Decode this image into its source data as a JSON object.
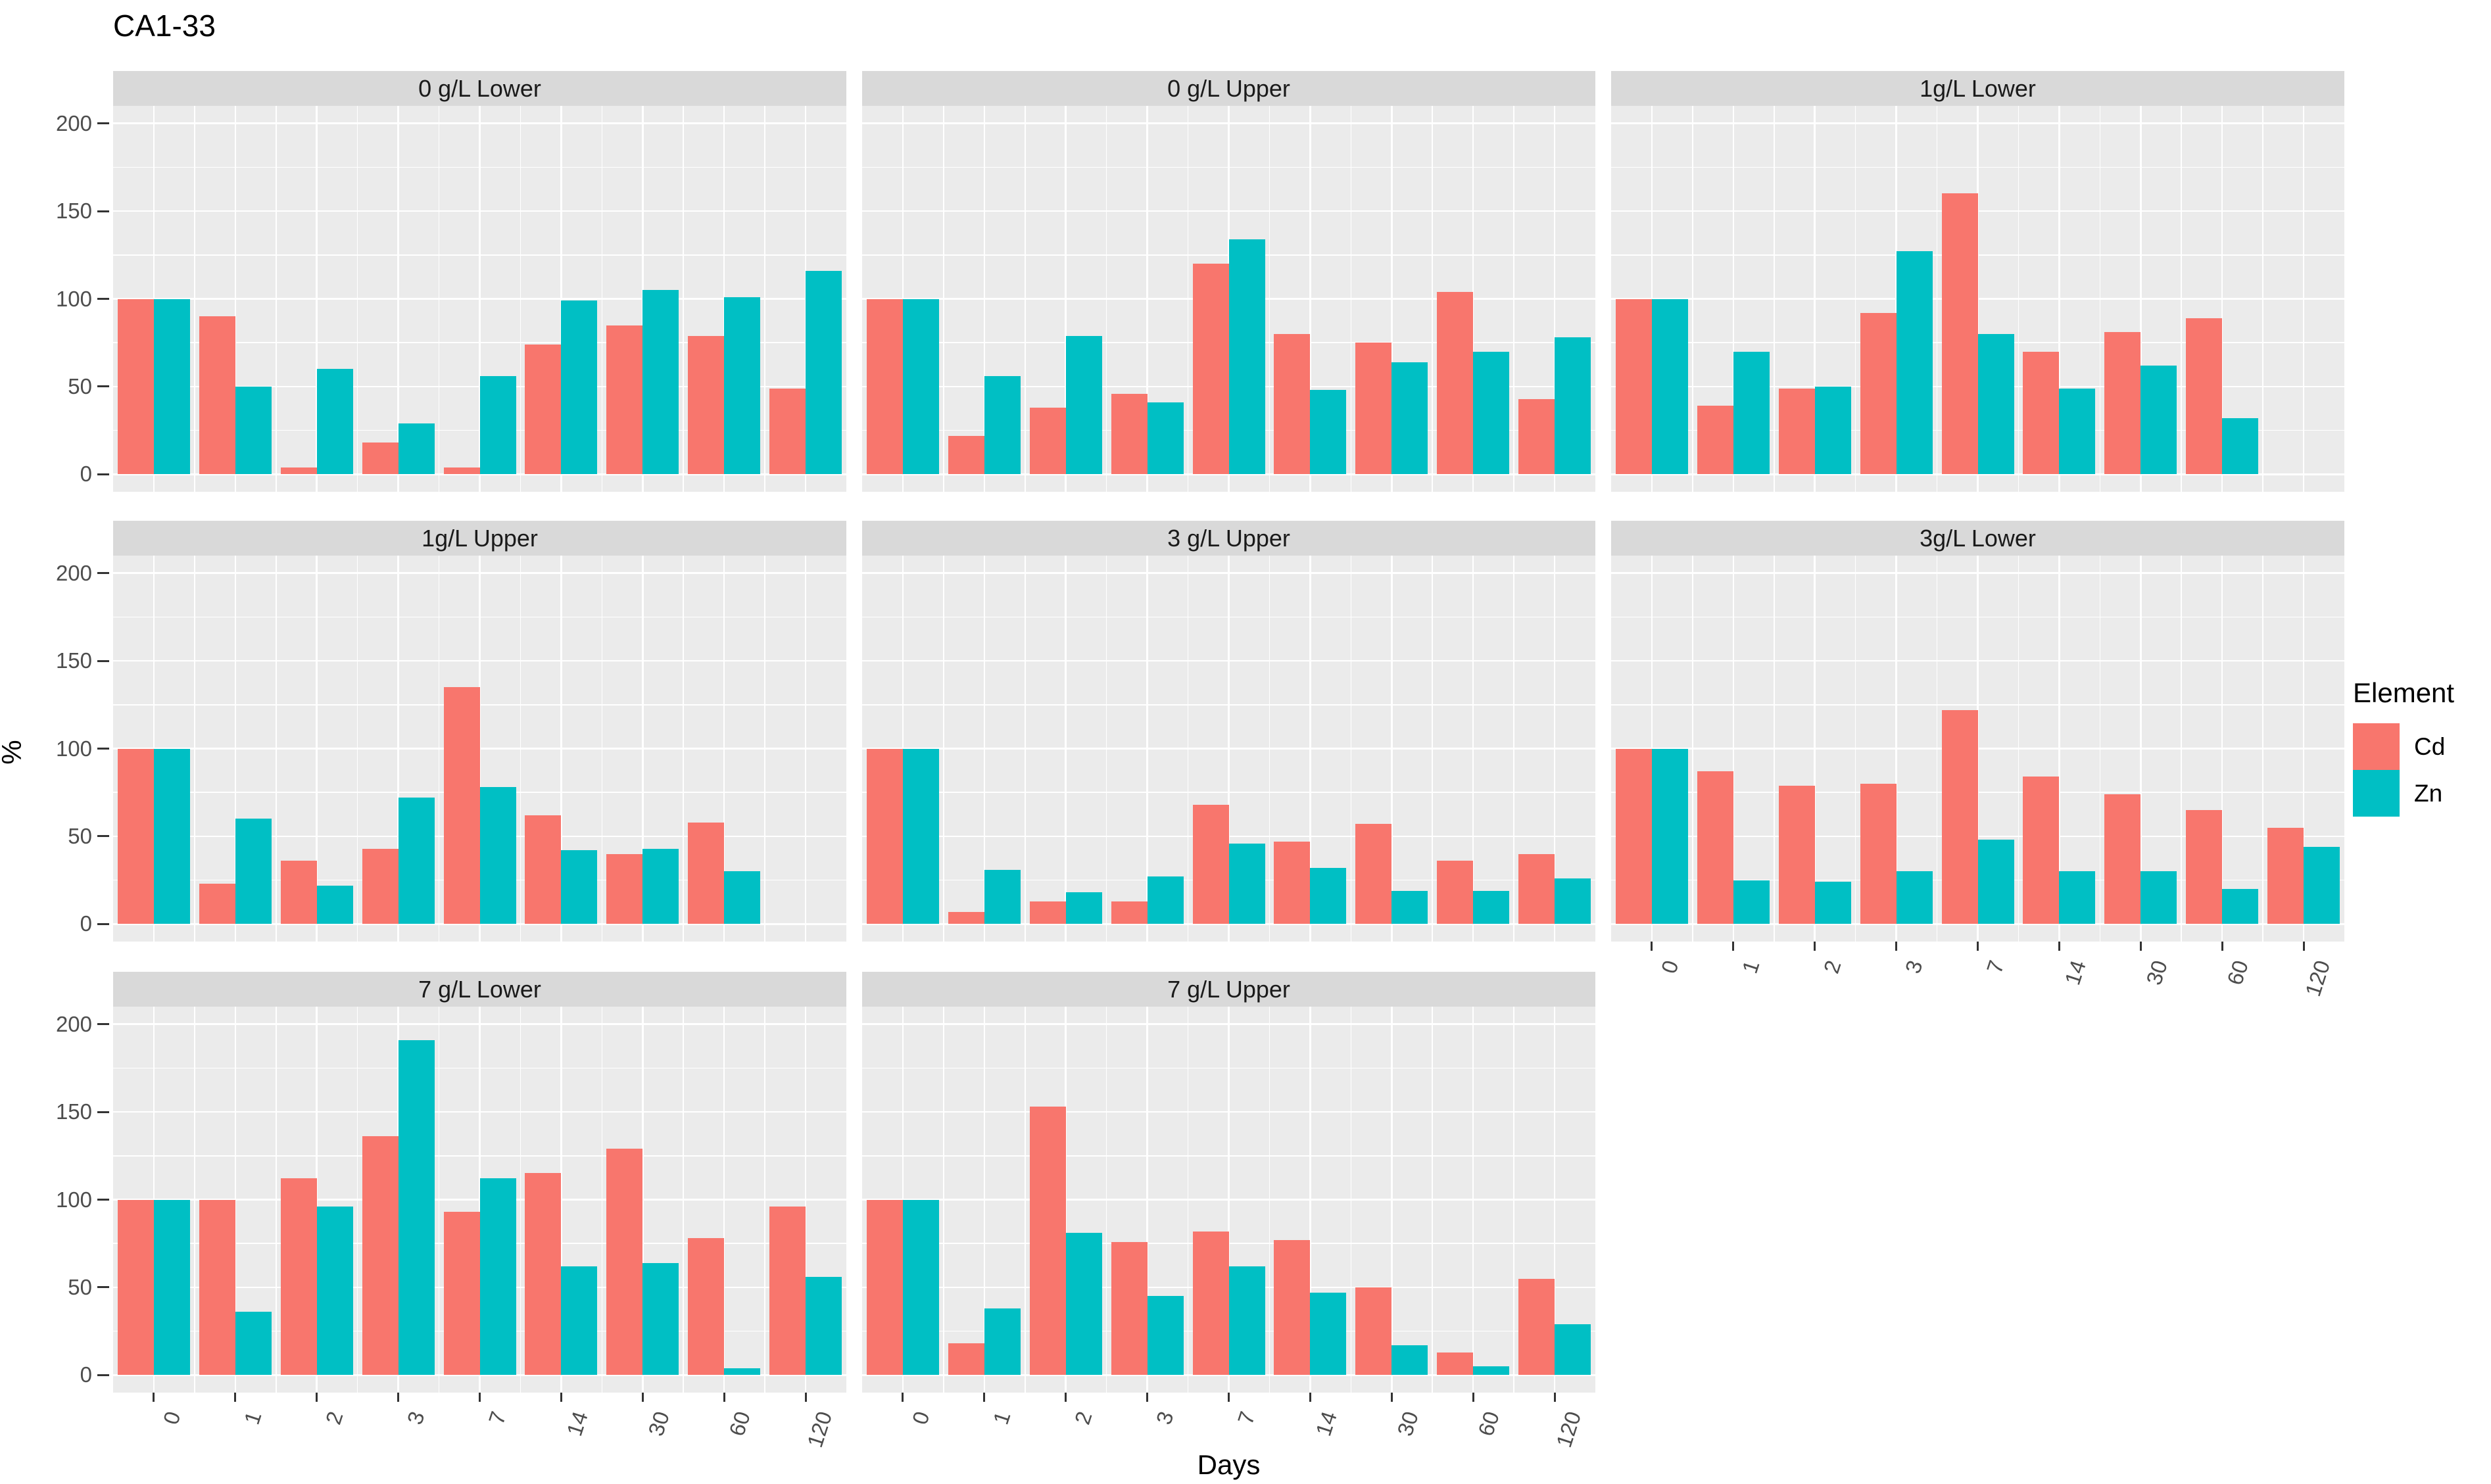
{
  "page": {
    "title": "CA1-33"
  },
  "colors": {
    "cd": "#F8766D",
    "zn": "#00BFC4",
    "panel_bg": "#EBEBEB",
    "strip_bg": "#D9D9D9",
    "grid": "#FFFFFF",
    "axis_text": "#4D4D4D",
    "tick_mark": "#333333"
  },
  "chart_data": {
    "type": "bar",
    "title": "CA1-33",
    "xlabel": "Days",
    "ylabel": "%",
    "categories": [
      "0",
      "1",
      "2",
      "3",
      "7",
      "14",
      "30",
      "60",
      "120"
    ],
    "y_ticks": [
      0,
      50,
      100,
      150,
      200
    ],
    "ylim": [
      -10,
      210
    ],
    "grid": "major+minor white on grey panel",
    "legend_position": "right",
    "legend": {
      "title": "Element",
      "entries": [
        {
          "name": "Cd",
          "color": "#F8766D"
        },
        {
          "name": "Zn",
          "color": "#00BFC4"
        }
      ]
    },
    "facets": [
      {
        "label": "0 g/L Lower",
        "row": 0,
        "col": 0,
        "x_axis": false,
        "series": [
          {
            "name": "Cd",
            "values": [
              100,
              90,
              4,
              18,
              4,
              74,
              85,
              79,
              49
            ]
          },
          {
            "name": "Zn",
            "values": [
              100,
              50,
              60,
              29,
              56,
              99,
              105,
              101,
              116
            ]
          }
        ]
      },
      {
        "label": "0 g/L Upper",
        "row": 0,
        "col": 1,
        "x_axis": false,
        "series": [
          {
            "name": "Cd",
            "values": [
              100,
              22,
              38,
              46,
              120,
              80,
              75,
              104,
              43
            ]
          },
          {
            "name": "Zn",
            "values": [
              100,
              56,
              79,
              41,
              134,
              48,
              64,
              70,
              78
            ]
          }
        ]
      },
      {
        "label": "1g/L Lower",
        "row": 0,
        "col": 2,
        "x_axis": false,
        "series": [
          {
            "name": "Cd",
            "values": [
              100,
              39,
              49,
              92,
              160,
              70,
              81,
              89,
              null
            ]
          },
          {
            "name": "Zn",
            "values": [
              100,
              70,
              50,
              127,
              80,
              49,
              62,
              32,
              null
            ]
          }
        ]
      },
      {
        "label": "1g/L Upper",
        "row": 1,
        "col": 0,
        "x_axis": false,
        "series": [
          {
            "name": "Cd",
            "values": [
              100,
              23,
              36,
              43,
              135,
              62,
              40,
              58,
              null
            ]
          },
          {
            "name": "Zn",
            "values": [
              100,
              60,
              22,
              72,
              78,
              42,
              43,
              30,
              null
            ]
          }
        ]
      },
      {
        "label": "3 g/L Upper",
        "row": 1,
        "col": 1,
        "x_axis": false,
        "series": [
          {
            "name": "Cd",
            "values": [
              100,
              7,
              13,
              13,
              68,
              47,
              57,
              36,
              40
            ]
          },
          {
            "name": "Zn",
            "values": [
              100,
              31,
              18,
              27,
              46,
              32,
              19,
              19,
              26
            ]
          }
        ]
      },
      {
        "label": "3g/L Lower",
        "row": 1,
        "col": 2,
        "x_axis": true,
        "series": [
          {
            "name": "Cd",
            "values": [
              100,
              87,
              79,
              80,
              122,
              84,
              74,
              65,
              55
            ]
          },
          {
            "name": "Zn",
            "values": [
              100,
              25,
              24,
              30,
              48,
              30,
              30,
              20,
              44
            ]
          }
        ]
      },
      {
        "label": "7 g/L Lower",
        "row": 2,
        "col": 0,
        "x_axis": true,
        "series": [
          {
            "name": "Cd",
            "values": [
              100,
              100,
              112,
              136,
              93,
              115,
              129,
              78,
              96
            ]
          },
          {
            "name": "Zn",
            "values": [
              100,
              36,
              96,
              191,
              112,
              62,
              64,
              4,
              56
            ]
          }
        ]
      },
      {
        "label": "7 g/L Upper",
        "row": 2,
        "col": 1,
        "x_axis": true,
        "series": [
          {
            "name": "Cd",
            "values": [
              100,
              18,
              153,
              76,
              82,
              77,
              50,
              13,
              55
            ]
          },
          {
            "name": "Zn",
            "values": [
              100,
              38,
              81,
              45,
              62,
              47,
              17,
              5,
              29
            ]
          }
        ]
      }
    ]
  }
}
